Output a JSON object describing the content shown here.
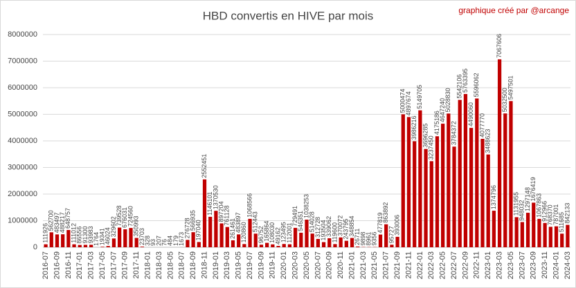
{
  "chart_data": {
    "type": "bar",
    "title": "HBD convertis en HIVE par mois",
    "annotation": "graphique créé par @arcange",
    "categories": [
      "2016-07",
      null,
      "2016-09",
      null,
      "2016-11",
      null,
      "2017-01",
      null,
      "2017-03",
      null,
      "2017-05",
      null,
      "2017-07",
      null,
      "2017-09",
      null,
      "2017-11",
      null,
      "2018-01",
      null,
      "2018-03",
      null,
      "2018-05",
      null,
      "2018-07",
      null,
      "2018-09",
      null,
      "2018-11",
      null,
      "2019-01",
      null,
      "2019-03",
      null,
      "2019-05",
      null,
      "2019-07",
      null,
      "2019-09",
      null,
      "2019-11",
      null,
      "2020-01",
      null,
      "2020-03",
      null,
      "2020-05",
      null,
      "2020-07",
      null,
      "2020-09",
      null,
      "2020-11",
      null,
      "2021-01",
      null,
      "2021-03",
      null,
      "2021-05",
      null,
      "2021-07",
      null,
      "2021-09",
      null,
      "2021-11",
      null,
      "2022-01",
      null,
      "2022-03",
      null,
      "2022-05",
      null,
      "2022-07",
      null,
      "2022-09",
      null,
      "2022-11",
      null,
      "2023-01",
      null,
      "2023-03",
      null,
      "2023-05",
      null,
      "2023-07",
      null,
      "2023-09",
      null,
      "2023-11",
      null,
      "2024-01",
      null,
      "2024-03"
    ],
    "values": [
      111926,
      562700,
      483497,
      488217,
      648757,
      111012,
      86556,
      91300,
      93983,
      1764,
      19341,
      46024,
      329602,
      739528,
      676031,
      724560,
      350993,
      23703,
      328,
      93,
      207,
      76,
      484,
      179,
      1673,
      276728,
      566935,
      197040,
      2552451,
      1146101,
      1370530,
      897204,
      761128,
      261461,
      483897,
      120860,
      1068566,
      512443,
      96752,
      165864,
      108030,
      49162,
      123495,
      112001,
      729491,
      546351,
      1038253,
      514028,
      312728,
      193504,
      339062,
      119600,
      370072,
      243795,
      348854,
      26711,
      9898,
      8961,
      9356,
      477819,
      863892,
      95727,
      393006,
      5000474,
      4897674,
      3986216,
      5149705,
      3696285,
      3237450,
      4175186,
      4647240,
      5028830,
      3784372,
      5542106,
      5763395,
      4490060,
      5596062,
      4077770,
      3488623,
      1374796,
      7067606,
      5032500,
      5497501,
      1131955,
      948032,
      1297148,
      1676419,
      1067863,
      912966,
      768370,
      787001,
      511685,
      842133
    ],
    "color": "#c00000",
    "ylim": [
      0,
      8000000
    ],
    "yticks": [
      0,
      1000000,
      2000000,
      3000000,
      4000000,
      5000000,
      6000000,
      7000000,
      8000000
    ],
    "grid": true
  }
}
